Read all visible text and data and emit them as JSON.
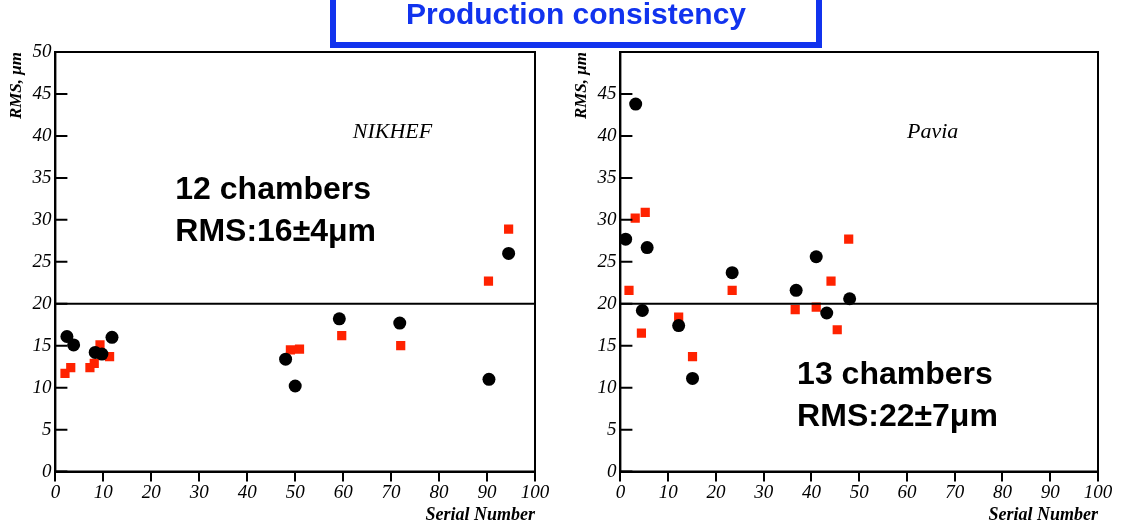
{
  "chart_data": [
    {
      "type": "scatter",
      "title": "Production consistency",
      "xlabel": "Serial Number",
      "ylabel": "RMS, μm",
      "xlim": [
        0,
        100
      ],
      "xticks": [
        0,
        10,
        20,
        30,
        40,
        50,
        60,
        70,
        80,
        90,
        100
      ],
      "ylim": [
        0,
        50
      ],
      "yticks": [
        0,
        5,
        10,
        15,
        20,
        25,
        30,
        35,
        40,
        45,
        50
      ],
      "grid": false,
      "legend": false,
      "series": [
        {
          "color": "#000000",
          "marker": "circle",
          "x": [
            2.4,
            3.8,
            8.3,
            9.7,
            11.8,
            48,
            50,
            59.2,
            71.8,
            90.4,
            94.5
          ],
          "values": [
            16.1,
            15.1,
            14.2,
            14.0,
            16.0,
            13.4,
            10.2,
            18.2,
            17.7,
            11.0,
            26.0
          ]
        },
        {
          "color": "#ff2200",
          "marker": "square",
          "x": [
            2,
            3.2,
            7.2,
            8.1,
            9.3,
            11.3,
            49,
            50.9,
            59.7,
            72,
            90.3,
            94.5
          ],
          "values": [
            11.7,
            12.4,
            12.4,
            12.9,
            15.1,
            13.7,
            14.5,
            14.6,
            16.2,
            15.0,
            22.7,
            28.9
          ]
        }
      ],
      "ref_lines": [
        {
          "axis": "y",
          "value": 20,
          "color": "#000000"
        }
      ],
      "annotations": [
        "NIKHEF",
        "12 chambers",
        "RMS:16±4μm"
      ]
    },
    {
      "type": "scatter",
      "xlabel": "Serial Number",
      "ylabel": "RMS, μm",
      "xlim": [
        0,
        100
      ],
      "xticks": [
        0,
        10,
        20,
        30,
        40,
        50,
        60,
        70,
        80,
        90,
        100
      ],
      "ylim": [
        0,
        50
      ],
      "yticks": [
        0,
        5,
        10,
        15,
        20,
        25,
        30,
        35,
        40,
        45
      ],
      "grid": false,
      "legend": false,
      "series": [
        {
          "color": "#000000",
          "marker": "circle",
          "x": [
            1.1,
            3.2,
            4.6,
            5.6,
            12.2,
            15.1,
            23.4,
            36.8,
            41,
            43.2,
            48
          ],
          "values": [
            27.7,
            43.8,
            19.2,
            26.7,
            17.4,
            11.1,
            23.7,
            21.6,
            25.6,
            18.9,
            20.6
          ]
        },
        {
          "color": "#ff2200",
          "marker": "square",
          "x": [
            1.8,
            3.1,
            4.4,
            5.2,
            12.2,
            15.1,
            23.4,
            36.6,
            41,
            44.1,
            45.4,
            47.8
          ],
          "values": [
            21.6,
            30.2,
            16.5,
            30.9,
            18.4,
            13.7,
            21.6,
            19.3,
            19.6,
            22.7,
            16.9,
            27.7
          ]
        }
      ],
      "ref_lines": [
        {
          "axis": "y",
          "value": 20,
          "color": "#000000"
        }
      ],
      "annotations": [
        "Pavia",
        "13 chambers",
        "RMS:22±7μm"
      ]
    }
  ]
}
